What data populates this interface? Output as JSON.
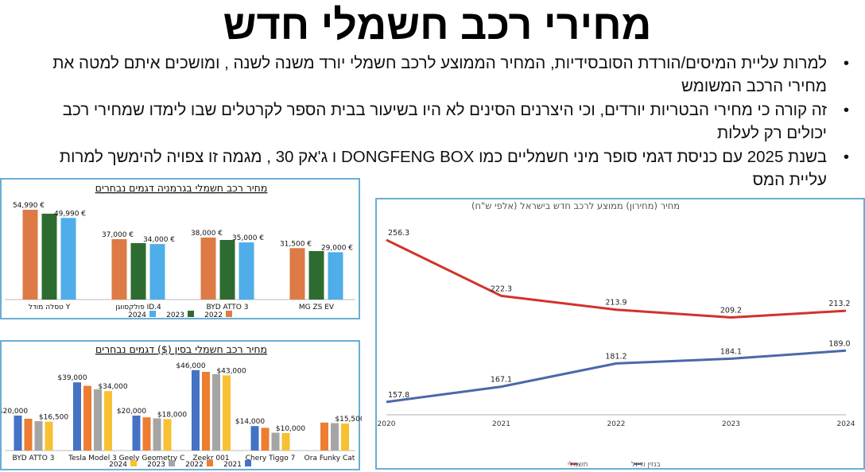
{
  "title": "מחירי רכב חשמלי חדש",
  "bullets": [
    "למרות עליית המיסים/הורדת הסובסידיות, המחיר הממוצע לרכב חשמלי יורד משנה לשנה , ומושכים איתם למטה את מחירי הרכב המשומש",
    "זה קורה כי מחירי הבטריות יורדים, וכי היצרנים הסינים לא היו בשיעור בבית הספר לקרטלים שבו לימדו שמחירי רכב יכולים רק לעלות",
    "בשנת 2025 עם כניסת דגמי סופר מיני חשמליים כמו DONGFENG BOX ו ג'אק 30 , מגמה זו צפויה להימשך למרות עליית המס"
  ],
  "chart_data": [
    {
      "type": "bar",
      "title": "מחיר רכב חשמלי בגרמניה דגמים נבחרים",
      "categories": [
        "טסלה מודל Y",
        "פולקסווגן ID.4",
        "BYD ATTO 3",
        "MG ZS EV"
      ],
      "series": [
        {
          "name": "2022",
          "color": "#DD7A45",
          "values": [
            54990,
            37000,
            38000,
            31500
          ],
          "labels": [
            "54,990 €",
            "37,000 €",
            "38,000 €",
            "31,500 €"
          ]
        },
        {
          "name": "2023",
          "color": "#2E6B30",
          "values": [
            52600,
            34600,
            36500,
            29700
          ],
          "labels": []
        },
        {
          "name": "2024",
          "color": "#4FADEA",
          "values": [
            49990,
            34000,
            35000,
            29000
          ],
          "labels": [
            "49,990 €",
            "34,000 €",
            "35,000 €",
            "29,000 €"
          ]
        }
      ],
      "legend": [
        "2024",
        "2023",
        "2022"
      ],
      "legend_position": "bottom",
      "grid": false
    },
    {
      "type": "bar",
      "title": "מחיר רכב חשמלי בסין ($) דגמים נבחרים",
      "categories": [
        "BYD ATTO 3",
        "Tesla Model 3",
        "Geely Geometry C",
        "Zeekr 001",
        "Chery Tiggo 7",
        "Ora Funky Cat"
      ],
      "series": [
        {
          "name": "2021",
          "color": "#4472C4",
          "values": [
            20000,
            39000,
            20000,
            46000,
            14000,
            null
          ],
          "labels": [
            "$20,000",
            "$39,000",
            "$20,000",
            "$46,000",
            "$14,000",
            ""
          ]
        },
        {
          "name": "2022",
          "color": "#ED7D31",
          "values": [
            18200,
            37000,
            19000,
            45000,
            13000,
            16000
          ],
          "labels": []
        },
        {
          "name": "2023",
          "color": "#A5A5A5",
          "values": [
            16800,
            35000,
            18400,
            43700,
            10200,
            15700
          ],
          "labels": []
        },
        {
          "name": "2024",
          "color": "#F7C133",
          "values": [
            16500,
            34000,
            18000,
            43000,
            10000,
            15500
          ],
          "labels": [
            "$16,500",
            "$34,000",
            "$18,000",
            "$43,000",
            "$10,000",
            "$15,500"
          ]
        }
      ],
      "legend": [
        "2024",
        "2023",
        "2022",
        "2021"
      ],
      "legend_position": "bottom",
      "grid": false
    },
    {
      "type": "line",
      "title": "מחיר (מחירון) ממוצע לרכב  חדש בישראל (אלפי ש\"ח)",
      "x": [
        "2020",
        "2021",
        "2022",
        "2023",
        "2024"
      ],
      "series": [
        {
          "name": "חשמלי",
          "color": "#D2322B",
          "values": [
            256.3,
            222.3,
            213.9,
            209.2,
            213.2
          ],
          "labels": [
            "256.3",
            "222.3",
            "213.9",
            "209.2",
            "213.2"
          ]
        },
        {
          "name": "בנזין ודיזל",
          "color": "#4A69A8",
          "values": [
            157.8,
            167.1,
            181.2,
            184.1,
            189.0
          ],
          "labels": [
            "157.8",
            "167.1",
            "181.2",
            "184.1",
            "189.0"
          ]
        }
      ],
      "ylim": [
        150,
        275
      ],
      "legend_position": "bottom",
      "grid": false
    }
  ]
}
